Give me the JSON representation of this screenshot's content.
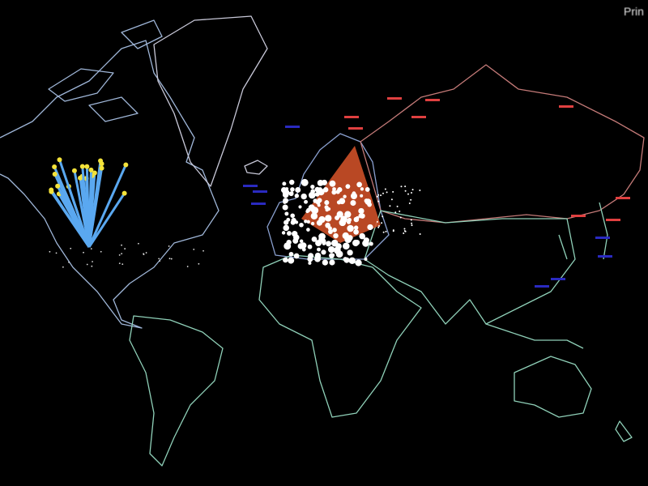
{
  "corner_label": "Prin",
  "colors": {
    "background": "#000000",
    "americas_outline": "#9fb6d8",
    "africa_outline": "#8fd0b8",
    "russia_outline": "#c47a78",
    "europe_outline": "#8aa0d0",
    "source_fan": "#5aa8f0",
    "source_tips": "#f3e23a",
    "target_fan": "#d9552a",
    "target_dots": "#ffffff",
    "label_red": "#e04040",
    "label_blue": "#2a2ac0"
  }
}
